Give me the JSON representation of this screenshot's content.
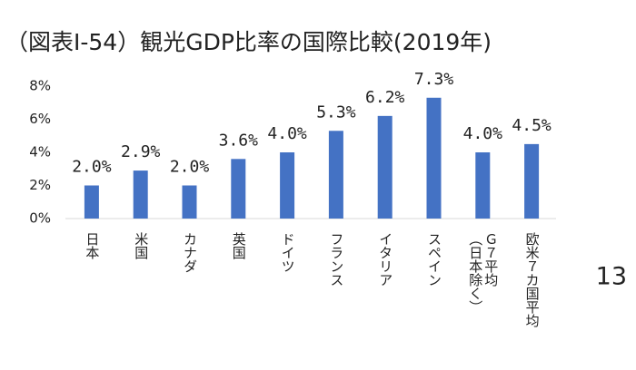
{
  "chart_data": {
    "type": "bar",
    "title": "（図表Ⅰ-54）観光GDP比率の国際比較(2019年)",
    "categories": [
      "日本",
      "米国",
      "カナダ",
      "英国",
      "ドイツ",
      "フランス",
      "イタリア",
      "スペイン",
      "Ｇ７平均\n（日本除く）",
      "欧米７カ国平均"
    ],
    "values": [
      2.0,
      2.9,
      2.0,
      3.6,
      4.0,
      5.3,
      6.2,
      7.3,
      4.0,
      4.5
    ],
    "value_labels": [
      "2.0%",
      "2.9%",
      "2.0%",
      "3.6%",
      "4.0%",
      "5.3%",
      "6.2%",
      "7.3%",
      "4.0%",
      "4.5%"
    ],
    "color": "#4472c4",
    "ylim": [
      0,
      8
    ],
    "yticks": [
      {
        "value": 0,
        "label": "0%"
      },
      {
        "value": 2,
        "label": "2%"
      },
      {
        "value": 4,
        "label": "4%"
      },
      {
        "value": 6,
        "label": "6%"
      },
      {
        "value": 8,
        "label": "8%"
      }
    ],
    "grid": false
  },
  "page_number": "13"
}
